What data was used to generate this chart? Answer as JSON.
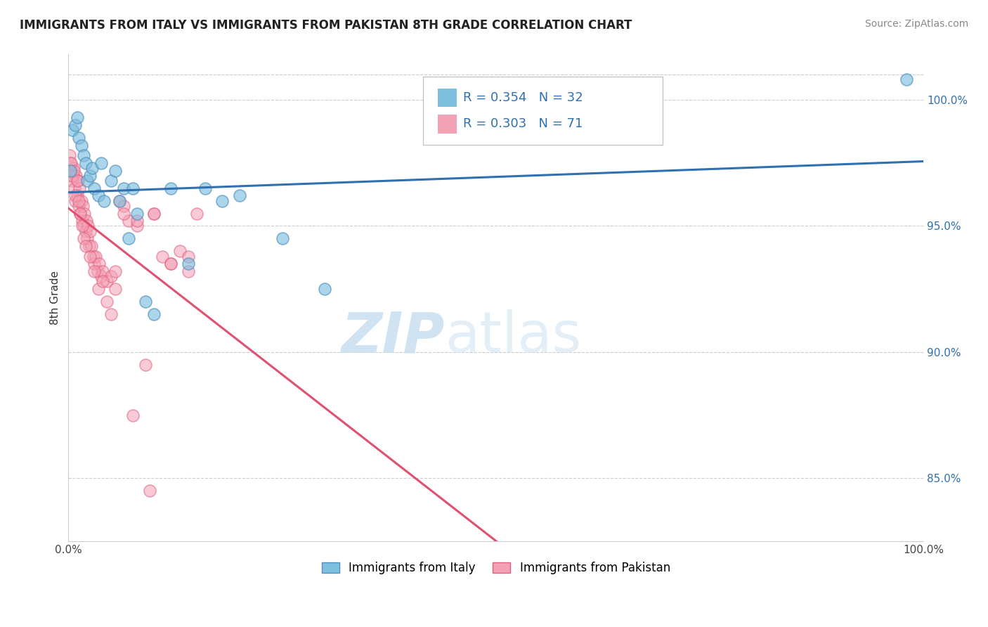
{
  "title": "IMMIGRANTS FROM ITALY VS IMMIGRANTS FROM PAKISTAN 8TH GRADE CORRELATION CHART",
  "source": "Source: ZipAtlas.com",
  "ylabel": "8th Grade",
  "watermark_zip": "ZIP",
  "watermark_atlas": "atlas",
  "xlim": [
    0.0,
    100.0
  ],
  "ylim": [
    82.5,
    101.8
  ],
  "yticks": [
    85.0,
    90.0,
    95.0,
    100.0
  ],
  "yticklabels": [
    "85.0%",
    "90.0%",
    "95.0%",
    "100.0%"
  ],
  "top_grid_y": 101.0,
  "italy_color": "#7fbfdf",
  "pakistan_color": "#f4a0b5",
  "italy_edge_color": "#5090bf",
  "pakistan_edge_color": "#e06080",
  "italy_line_color": "#3070b0",
  "pakistan_line_color": "#e05070",
  "background_color": "#ffffff",
  "grid_color": "#cccccc",
  "legend_r_italy": "R = 0.354",
  "legend_n_italy": "N = 32",
  "legend_r_pakistan": "R = 0.303",
  "legend_n_pakistan": "N = 71",
  "legend_text_color": "#3070b0",
  "italy_scatter_x": [
    0.2,
    0.5,
    0.8,
    1.0,
    1.2,
    1.5,
    1.8,
    2.0,
    2.2,
    2.5,
    2.8,
    3.0,
    3.5,
    3.8,
    4.2,
    5.0,
    5.5,
    6.0,
    6.5,
    7.0,
    7.5,
    8.0,
    9.0,
    10.0,
    12.0,
    14.0,
    16.0,
    18.0,
    20.0,
    25.0,
    30.0,
    98.0
  ],
  "italy_scatter_y": [
    97.2,
    98.8,
    99.0,
    99.3,
    98.5,
    98.2,
    97.8,
    97.5,
    96.8,
    97.0,
    97.3,
    96.5,
    96.2,
    97.5,
    96.0,
    96.8,
    97.2,
    96.0,
    96.5,
    94.5,
    96.5,
    95.5,
    92.0,
    91.5,
    96.5,
    93.5,
    96.5,
    96.0,
    96.2,
    94.5,
    92.5,
    100.8
  ],
  "pakistan_scatter_x": [
    0.1,
    0.2,
    0.3,
    0.4,
    0.5,
    0.6,
    0.7,
    0.8,
    0.9,
    1.0,
    1.1,
    1.2,
    1.3,
    1.4,
    1.5,
    1.6,
    1.7,
    1.8,
    1.9,
    2.0,
    2.1,
    2.2,
    2.3,
    2.4,
    2.5,
    2.7,
    2.9,
    3.0,
    3.2,
    3.4,
    3.6,
    3.8,
    4.0,
    4.5,
    5.0,
    5.5,
    6.0,
    6.5,
    7.0,
    8.0,
    9.0,
    10.0,
    11.0,
    12.0,
    13.0,
    14.0,
    15.0,
    0.3,
    0.5,
    0.6,
    0.8,
    1.0,
    1.2,
    1.4,
    1.6,
    1.8,
    2.0,
    2.5,
    3.0,
    3.5,
    4.0,
    4.5,
    5.0,
    8.0,
    10.0,
    12.0,
    14.0,
    5.5,
    6.5,
    7.5,
    9.5
  ],
  "pakistan_scatter_y": [
    97.8,
    97.5,
    97.0,
    97.2,
    96.8,
    97.3,
    96.5,
    96.0,
    97.0,
    96.2,
    96.8,
    95.8,
    96.5,
    95.5,
    96.0,
    95.2,
    95.8,
    95.0,
    95.5,
    94.8,
    95.2,
    94.5,
    95.0,
    94.2,
    94.8,
    94.2,
    93.8,
    93.5,
    93.8,
    93.2,
    93.5,
    93.0,
    93.2,
    92.8,
    93.0,
    93.2,
    96.0,
    95.8,
    95.2,
    95.0,
    89.5,
    95.5,
    93.8,
    93.5,
    94.0,
    93.8,
    95.5,
    97.5,
    97.0,
    97.2,
    96.2,
    96.8,
    96.0,
    95.5,
    95.0,
    94.5,
    94.2,
    93.8,
    93.2,
    92.5,
    92.8,
    92.0,
    91.5,
    95.2,
    95.5,
    93.5,
    93.2,
    92.5,
    95.5,
    87.5,
    84.5
  ]
}
